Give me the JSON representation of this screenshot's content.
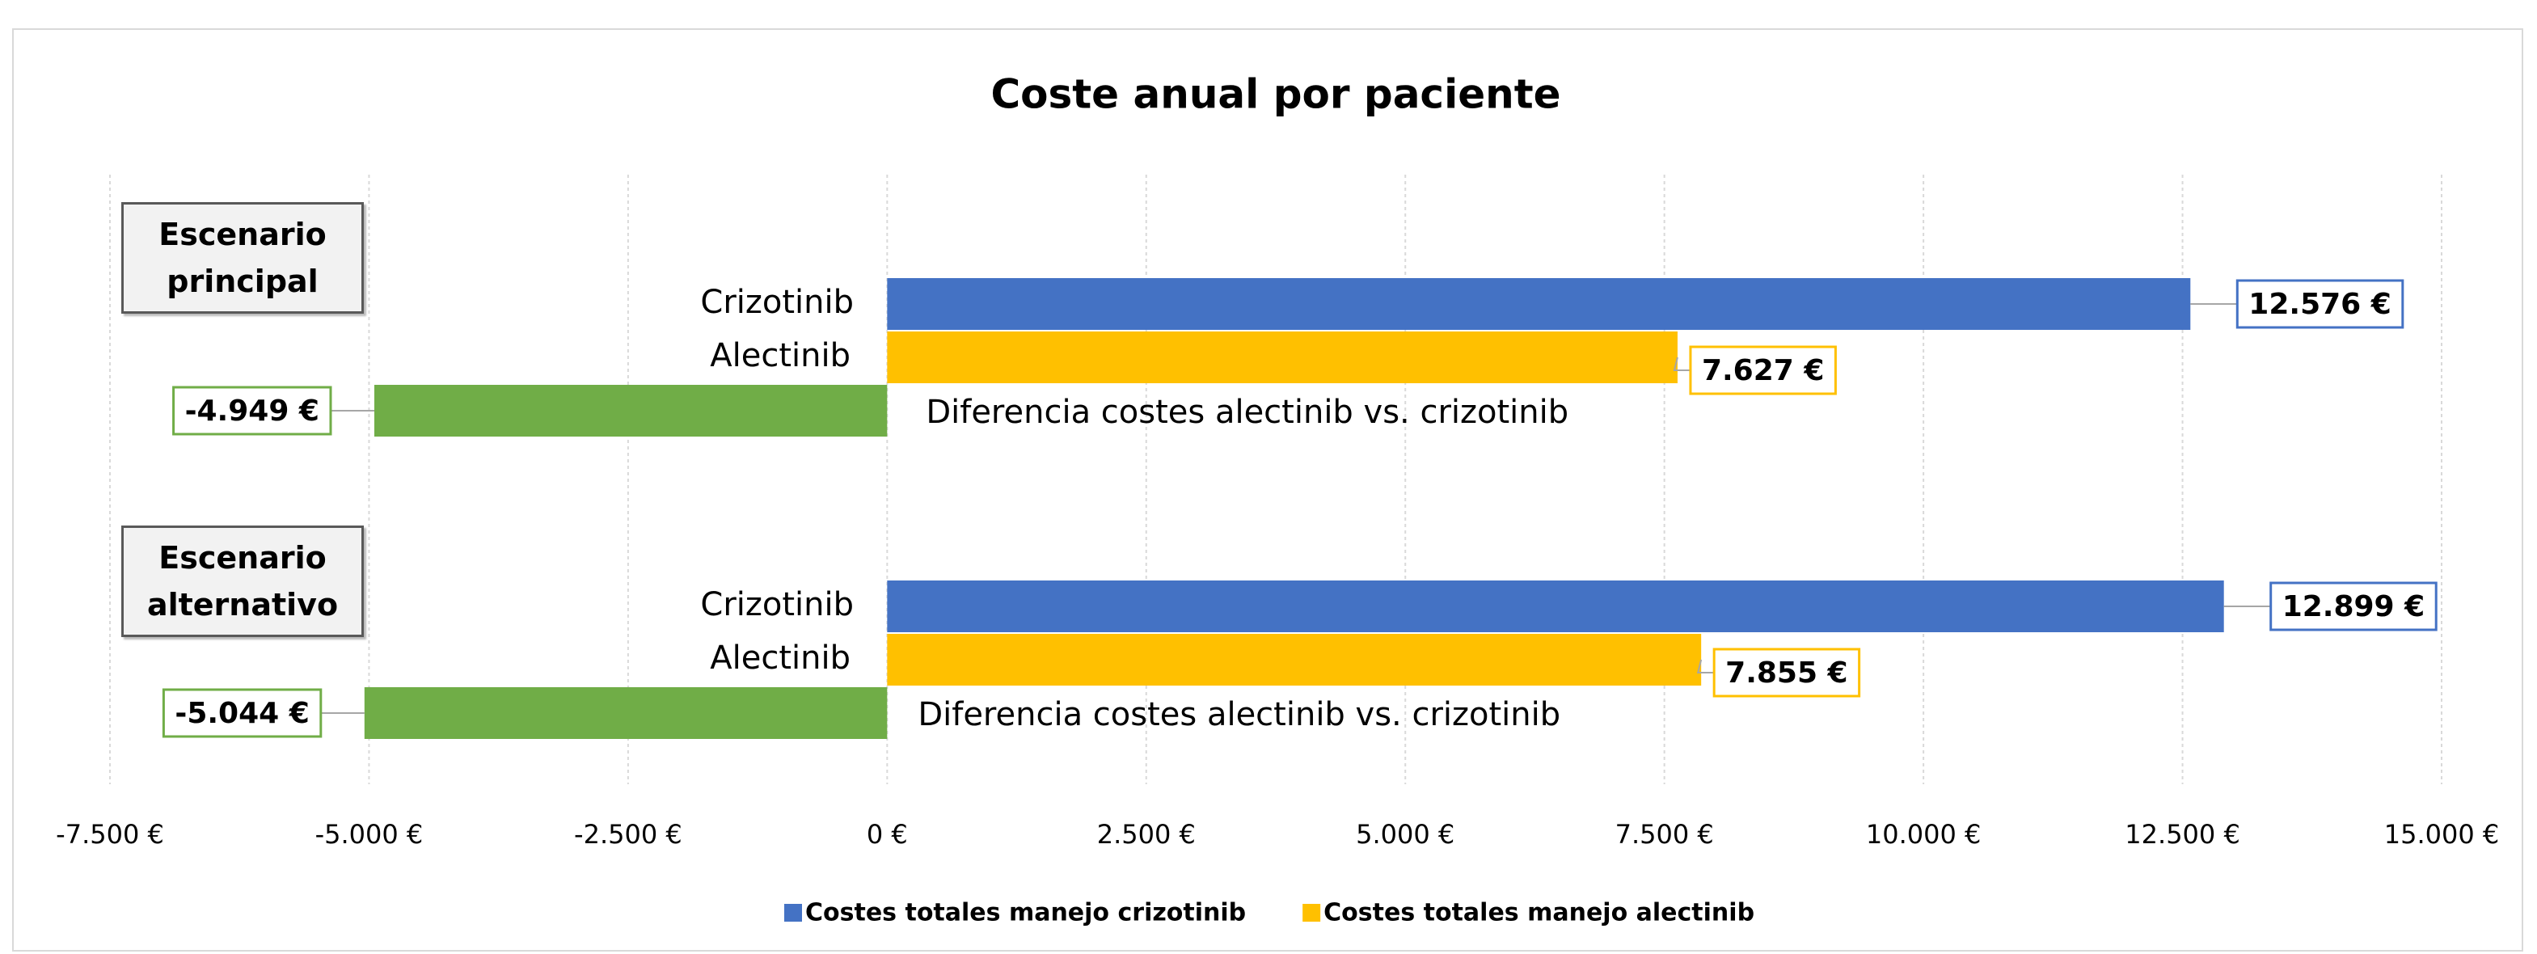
{
  "chart_data": {
    "type": "bar",
    "orientation": "horizontal",
    "title": "Coste anual por paciente",
    "categories": [
      "Escenario principal",
      "Escenario alternativo"
    ],
    "series": [
      {
        "name": "Costes totales manejo crizotinib",
        "bar_label": "Crizotinib",
        "color": "#4472c4",
        "values": [
          12576,
          12899
        ],
        "value_labels": [
          "12.576 €",
          "12.899 €"
        ]
      },
      {
        "name": "Costes totales manejo alectinib",
        "bar_label": "Alectinib",
        "color": "#ffc000",
        "values": [
          7627,
          7855
        ],
        "value_labels": [
          "7.627 €",
          "7.855 €"
        ]
      },
      {
        "bar_label": "Diferencia costes alectinib vs. crizotinib",
        "color": "#70ad47",
        "values": [
          -4949,
          -5044
        ],
        "value_labels": [
          "-4.949 €",
          "-5.044 €"
        ]
      }
    ],
    "xlim": [
      -7500,
      15000
    ],
    "xticks": [
      {
        "value": -7500,
        "label": "-7.500 €"
      },
      {
        "value": -5000,
        "label": "-5.000 €"
      },
      {
        "value": -2500,
        "label": "-2.500 €"
      },
      {
        "value": 0,
        "label": "0 €"
      },
      {
        "value": 2500,
        "label": "2.500 €"
      },
      {
        "value": 5000,
        "label": "5.000 €"
      },
      {
        "value": 7500,
        "label": "7.500 €"
      },
      {
        "value": 10000,
        "label": "10.000 €"
      },
      {
        "value": 12500,
        "label": "12.500 €"
      },
      {
        "value": 15000,
        "label": "15.000 €"
      }
    ],
    "grid": true,
    "legend": "bottom"
  }
}
